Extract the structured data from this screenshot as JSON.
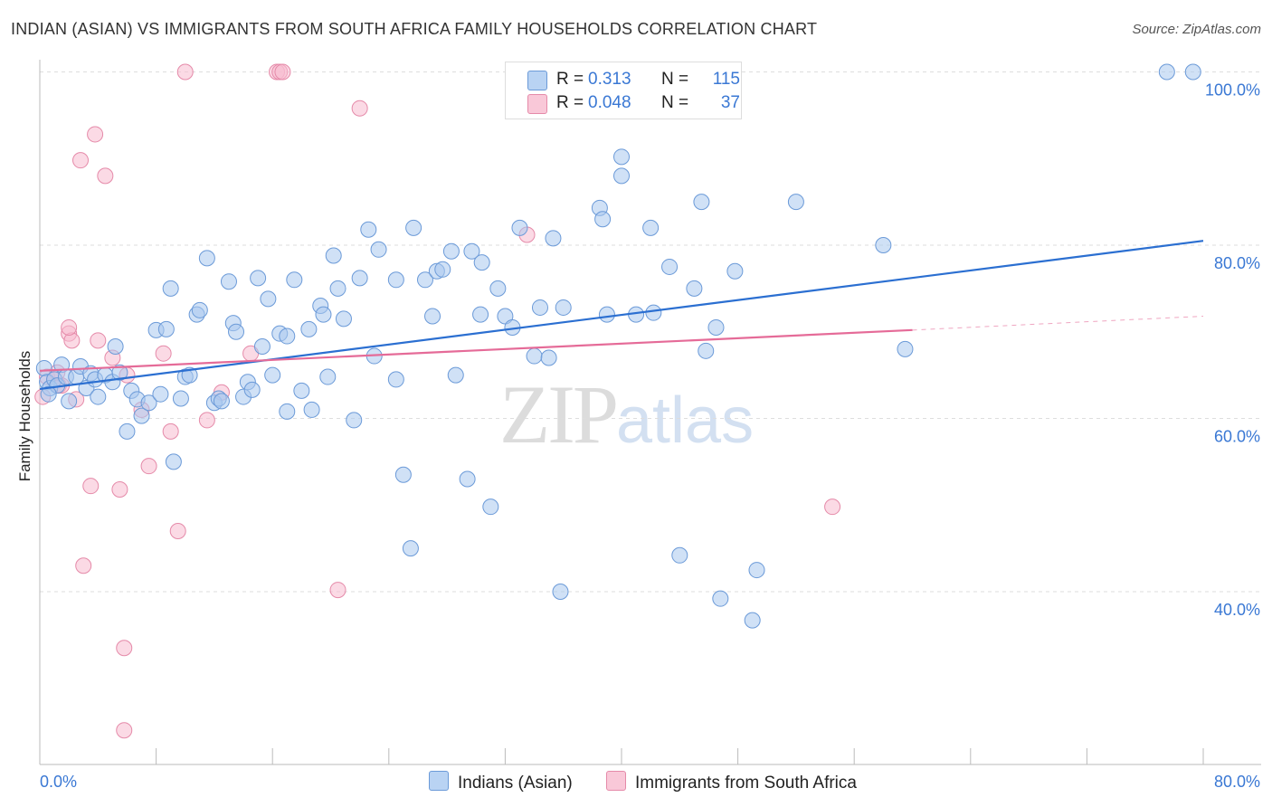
{
  "header": {
    "title": "INDIAN (ASIAN) VS IMMIGRANTS FROM SOUTH AFRICA FAMILY HOUSEHOLDS CORRELATION CHART",
    "source": "Source: ZipAtlas.com"
  },
  "watermark": {
    "zip": "ZIP",
    "atlas": "atlas"
  },
  "colors": {
    "blue_fill": "#a9c8ef",
    "blue_stroke": "#6b9ad8",
    "blue_line": "#2b6fd1",
    "pink_fill": "#f7bcd0",
    "pink_stroke": "#e58aa9",
    "pink_line": "#e56b98",
    "axis_text": "#3a78d4",
    "grid": "#dddddd"
  },
  "legend_top": [
    {
      "r_label": "R =",
      "r_value": "0.313",
      "n_label": "N =",
      "n_value": "115"
    },
    {
      "r_label": "R =",
      "r_value": "0.048",
      "n_label": "N =",
      "n_value": "37"
    }
  ],
  "legend_bottom": [
    {
      "label": "Indians (Asian)"
    },
    {
      "label": "Immigrants from South Africa"
    }
  ],
  "chart_data": {
    "type": "scatter",
    "title": "INDIAN (ASIAN) VS IMMIGRANTS FROM SOUTH AFRICA FAMILY HOUSEHOLDS CORRELATION CHART",
    "xlabel": "",
    "ylabel": "Family Households",
    "xlim": [
      0,
      80
    ],
    "ylim": [
      20,
      100
    ],
    "x_tick_labels": [
      "0.0%",
      "80.0%"
    ],
    "y_tick_labels": [
      "40.0%",
      "60.0%",
      "80.0%",
      "100.0%"
    ],
    "y_ticks": [
      40,
      60,
      80,
      100
    ],
    "grid": "horizontal dashed",
    "legend_placement": "top-center",
    "series": [
      {
        "name": "Indians (Asian)",
        "color": "#a9c8ef",
        "trend": {
          "x": [
            0,
            80
          ],
          "y": [
            63.4,
            80.5
          ],
          "style": "solid"
        },
        "points": [
          [
            0.3,
            65.8
          ],
          [
            0.5,
            64.2
          ],
          [
            0.7,
            63.5
          ],
          [
            1.0,
            64.5
          ],
          [
            1.2,
            63.8
          ],
          [
            1.5,
            66.2
          ],
          [
            1.8,
            64.8
          ],
          [
            2.0,
            62.0
          ],
          [
            2.5,
            64.8
          ],
          [
            2.8,
            66.0
          ],
          [
            3.2,
            63.5
          ],
          [
            3.5,
            65.2
          ],
          [
            3.8,
            64.5
          ],
          [
            4.0,
            62.5
          ],
          [
            4.5,
            65.0
          ],
          [
            5.0,
            64.2
          ],
          [
            5.2,
            68.3
          ],
          [
            5.5,
            65.3
          ],
          [
            6.0,
            58.5
          ],
          [
            6.3,
            63.2
          ],
          [
            6.7,
            62.2
          ],
          [
            7.0,
            60.3
          ],
          [
            7.5,
            61.8
          ],
          [
            8.0,
            70.2
          ],
          [
            8.3,
            62.8
          ],
          [
            8.7,
            70.3
          ],
          [
            9.0,
            75.0
          ],
          [
            9.2,
            55.0
          ],
          [
            9.7,
            62.3
          ],
          [
            10.0,
            64.8
          ],
          [
            10.3,
            65.0
          ],
          [
            10.8,
            72.0
          ],
          [
            11.0,
            72.5
          ],
          [
            11.5,
            78.5
          ],
          [
            12.0,
            61.8
          ],
          [
            12.3,
            62.3
          ],
          [
            12.5,
            62.0
          ],
          [
            13.0,
            75.8
          ],
          [
            13.3,
            71.0
          ],
          [
            13.5,
            70.0
          ],
          [
            14.0,
            62.5
          ],
          [
            14.3,
            64.2
          ],
          [
            14.6,
            63.3
          ],
          [
            15.0,
            76.2
          ],
          [
            15.3,
            68.3
          ],
          [
            15.7,
            73.8
          ],
          [
            16.0,
            65.0
          ],
          [
            16.5,
            69.8
          ],
          [
            17.0,
            69.5
          ],
          [
            17.5,
            76.0
          ],
          [
            17.0,
            60.8
          ],
          [
            18.0,
            63.2
          ],
          [
            18.5,
            70.3
          ],
          [
            18.7,
            61.0
          ],
          [
            19.3,
            73.0
          ],
          [
            19.5,
            72.0
          ],
          [
            19.8,
            64.8
          ],
          [
            20.2,
            78.8
          ],
          [
            20.5,
            75.0
          ],
          [
            20.9,
            71.5
          ],
          [
            21.6,
            59.8
          ],
          [
            22.0,
            76.2
          ],
          [
            22.6,
            81.8
          ],
          [
            23.0,
            67.2
          ],
          [
            23.3,
            79.5
          ],
          [
            24.5,
            64.5
          ],
          [
            24.5,
            76.0
          ],
          [
            25.0,
            53.5
          ],
          [
            25.5,
            45.0
          ],
          [
            25.7,
            82.0
          ],
          [
            26.5,
            76.0
          ],
          [
            27.0,
            71.8
          ],
          [
            27.3,
            77.0
          ],
          [
            27.7,
            77.2
          ],
          [
            28.3,
            79.3
          ],
          [
            28.6,
            65.0
          ],
          [
            29.4,
            53.0
          ],
          [
            29.7,
            79.3
          ],
          [
            30.3,
            72.0
          ],
          [
            30.4,
            78.0
          ],
          [
            31.0,
            49.8
          ],
          [
            31.5,
            75.0
          ],
          [
            32.0,
            71.8
          ],
          [
            32.5,
            70.5
          ],
          [
            33.0,
            82.0
          ],
          [
            34.0,
            67.2
          ],
          [
            34.4,
            72.8
          ],
          [
            35.0,
            67.0
          ],
          [
            35.3,
            80.8
          ],
          [
            35.8,
            40.0
          ],
          [
            36.0,
            72.8
          ],
          [
            38.5,
            84.3
          ],
          [
            38.7,
            83.0
          ],
          [
            39.0,
            72.0
          ],
          [
            40.0,
            88.0
          ],
          [
            40.0,
            90.2
          ],
          [
            41.0,
            72.0
          ],
          [
            42.0,
            82.0
          ],
          [
            42.2,
            72.2
          ],
          [
            43.3,
            77.5
          ],
          [
            44.0,
            44.2
          ],
          [
            45.0,
            75.0
          ],
          [
            45.5,
            85.0
          ],
          [
            45.8,
            67.8
          ],
          [
            46.5,
            70.5
          ],
          [
            46.8,
            39.2
          ],
          [
            47.8,
            77.0
          ],
          [
            49.0,
            36.7
          ],
          [
            49.3,
            42.5
          ],
          [
            52.0,
            85.0
          ],
          [
            58.0,
            80.0
          ],
          [
            59.5,
            68.0
          ],
          [
            77.5,
            100.0
          ],
          [
            79.3,
            100.0
          ],
          [
            0.6,
            62.8
          ]
        ]
      },
      {
        "name": "Immigrants from South Africa",
        "color": "#f7bcd0",
        "trend": {
          "x": [
            0,
            60
          ],
          "y": [
            65.5,
            70.2
          ],
          "style": "solid",
          "dashed_extension": {
            "x": [
              60,
              80
            ],
            "y": [
              70.2,
              71.8
            ]
          }
        },
        "points": [
          [
            0.2,
            62.5
          ],
          [
            0.5,
            64.8
          ],
          [
            1.0,
            64.5
          ],
          [
            1.3,
            63.8
          ],
          [
            1.5,
            63.8
          ],
          [
            2.0,
            69.8
          ],
          [
            2.2,
            69.0
          ],
          [
            2.5,
            62.2
          ],
          [
            2.8,
            89.8
          ],
          [
            3.0,
            43.0
          ],
          [
            3.5,
            52.2
          ],
          [
            3.8,
            92.8
          ],
          [
            4.0,
            69.0
          ],
          [
            4.5,
            88.0
          ],
          [
            5.0,
            67.0
          ],
          [
            5.5,
            51.8
          ],
          [
            5.8,
            33.5
          ],
          [
            5.8,
            24.0
          ],
          [
            6.0,
            65.0
          ],
          [
            7.0,
            61.0
          ],
          [
            7.5,
            54.5
          ],
          [
            8.5,
            67.5
          ],
          [
            9.0,
            58.5
          ],
          [
            9.5,
            47.0
          ],
          [
            10.0,
            100.0
          ],
          [
            11.5,
            59.8
          ],
          [
            12.5,
            63.0
          ],
          [
            14.5,
            67.5
          ],
          [
            16.3,
            100.0
          ],
          [
            16.5,
            100.0
          ],
          [
            16.7,
            100.0
          ],
          [
            20.5,
            40.2
          ],
          [
            22.0,
            95.8
          ],
          [
            33.5,
            81.2
          ],
          [
            54.5,
            49.8
          ],
          [
            2.0,
            70.5
          ],
          [
            1.2,
            65.3
          ]
        ]
      }
    ]
  }
}
